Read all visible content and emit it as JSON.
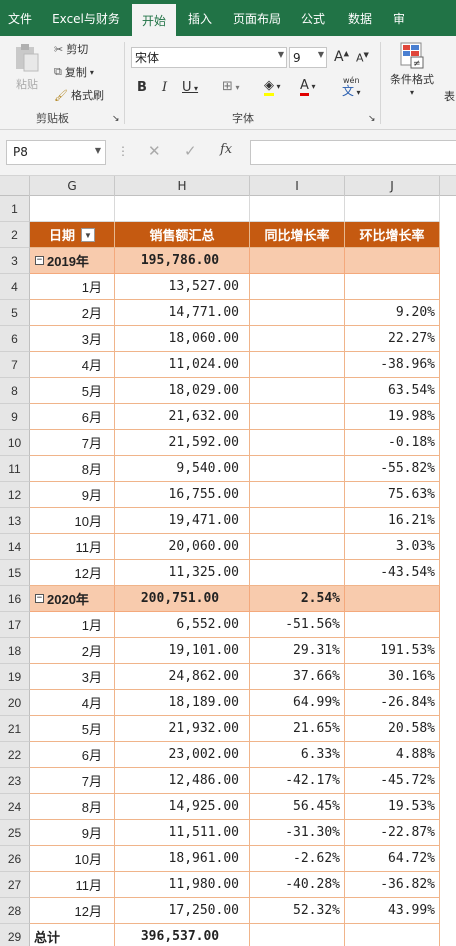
{
  "ribbon_tabs": [
    "文件",
    "Excel与财务",
    "开始",
    "插入",
    "页面布局",
    "公式",
    "数据",
    "审"
  ],
  "active_tab_index": 2,
  "clipboard": {
    "paste": "粘贴",
    "cut": "剪切",
    "copy": "复制",
    "format_painter": "格式刷",
    "label": "剪贴板"
  },
  "font": {
    "name": "宋体",
    "size": "9",
    "label": "字体",
    "bold": "B",
    "italic": "I",
    "underline": "U",
    "grow": "A",
    "shrink": "A",
    "color_letter": "A",
    "wen": "wén",
    "wen_char": "文"
  },
  "styles": {
    "conditional_format": "条件格式",
    "next": "表"
  },
  "formula_bar": {
    "name_box": "P8",
    "fx": "fx",
    "value": ""
  },
  "columns": [
    "G",
    "H",
    "I",
    "J"
  ],
  "row_numbers": [
    "1",
    "2",
    "3",
    "4",
    "5",
    "6",
    "7",
    "8",
    "9",
    "10",
    "11",
    "12",
    "13",
    "14",
    "15",
    "16",
    "17",
    "18",
    "19",
    "20",
    "21",
    "22",
    "23",
    "24",
    "25",
    "26",
    "27",
    "28",
    "29",
    "30"
  ],
  "header": {
    "date": "日期",
    "sum": "销售额汇总",
    "yoy": "同比增长率",
    "mom": "环比增长率"
  },
  "years": [
    {
      "label": "2019年",
      "total": "195,786.00",
      "yoy": "",
      "months": [
        {
          "m": "1月",
          "v": "13,527.00",
          "yoy": "",
          "mom": ""
        },
        {
          "m": "2月",
          "v": "14,771.00",
          "yoy": "",
          "mom": "9.20%"
        },
        {
          "m": "3月",
          "v": "18,060.00",
          "yoy": "",
          "mom": "22.27%"
        },
        {
          "m": "4月",
          "v": "11,024.00",
          "yoy": "",
          "mom": "-38.96%"
        },
        {
          "m": "5月",
          "v": "18,029.00",
          "yoy": "",
          "mom": "63.54%"
        },
        {
          "m": "6月",
          "v": "21,632.00",
          "yoy": "",
          "mom": "19.98%"
        },
        {
          "m": "7月",
          "v": "21,592.00",
          "yoy": "",
          "mom": "-0.18%"
        },
        {
          "m": "8月",
          "v": "9,540.00",
          "yoy": "",
          "mom": "-55.82%"
        },
        {
          "m": "9月",
          "v": "16,755.00",
          "yoy": "",
          "mom": "75.63%"
        },
        {
          "m": "10月",
          "v": "19,471.00",
          "yoy": "",
          "mom": "16.21%"
        },
        {
          "m": "11月",
          "v": "20,060.00",
          "yoy": "",
          "mom": "3.03%"
        },
        {
          "m": "12月",
          "v": "11,325.00",
          "yoy": "",
          "mom": "-43.54%"
        }
      ]
    },
    {
      "label": "2020年",
      "total": "200,751.00",
      "yoy": "2.54%",
      "months": [
        {
          "m": "1月",
          "v": "6,552.00",
          "yoy": "-51.56%",
          "mom": ""
        },
        {
          "m": "2月",
          "v": "19,101.00",
          "yoy": "29.31%",
          "mom": "191.53%"
        },
        {
          "m": "3月",
          "v": "24,862.00",
          "yoy": "37.66%",
          "mom": "30.16%"
        },
        {
          "m": "4月",
          "v": "18,189.00",
          "yoy": "64.99%",
          "mom": "-26.84%"
        },
        {
          "m": "5月",
          "v": "21,932.00",
          "yoy": "21.65%",
          "mom": "20.58%"
        },
        {
          "m": "6月",
          "v": "23,002.00",
          "yoy": "6.33%",
          "mom": "4.88%"
        },
        {
          "m": "7月",
          "v": "12,486.00",
          "yoy": "-42.17%",
          "mom": "-45.72%"
        },
        {
          "m": "8月",
          "v": "14,925.00",
          "yoy": "56.45%",
          "mom": "19.53%"
        },
        {
          "m": "9月",
          "v": "11,511.00",
          "yoy": "-31.30%",
          "mom": "-22.87%"
        },
        {
          "m": "10月",
          "v": "18,961.00",
          "yoy": "-2.62%",
          "mom": "64.72%"
        },
        {
          "m": "11月",
          "v": "11,980.00",
          "yoy": "-40.28%",
          "mom": "-36.82%"
        },
        {
          "m": "12月",
          "v": "17,250.00",
          "yoy": "52.32%",
          "mom": "43.99%"
        }
      ]
    }
  ],
  "grand_total": {
    "label": "总计",
    "value": "396,537.00"
  },
  "colors": {
    "ribbon_green": "#217346",
    "header_fill": "#c55a11",
    "year_fill": "#f8cbad"
  }
}
